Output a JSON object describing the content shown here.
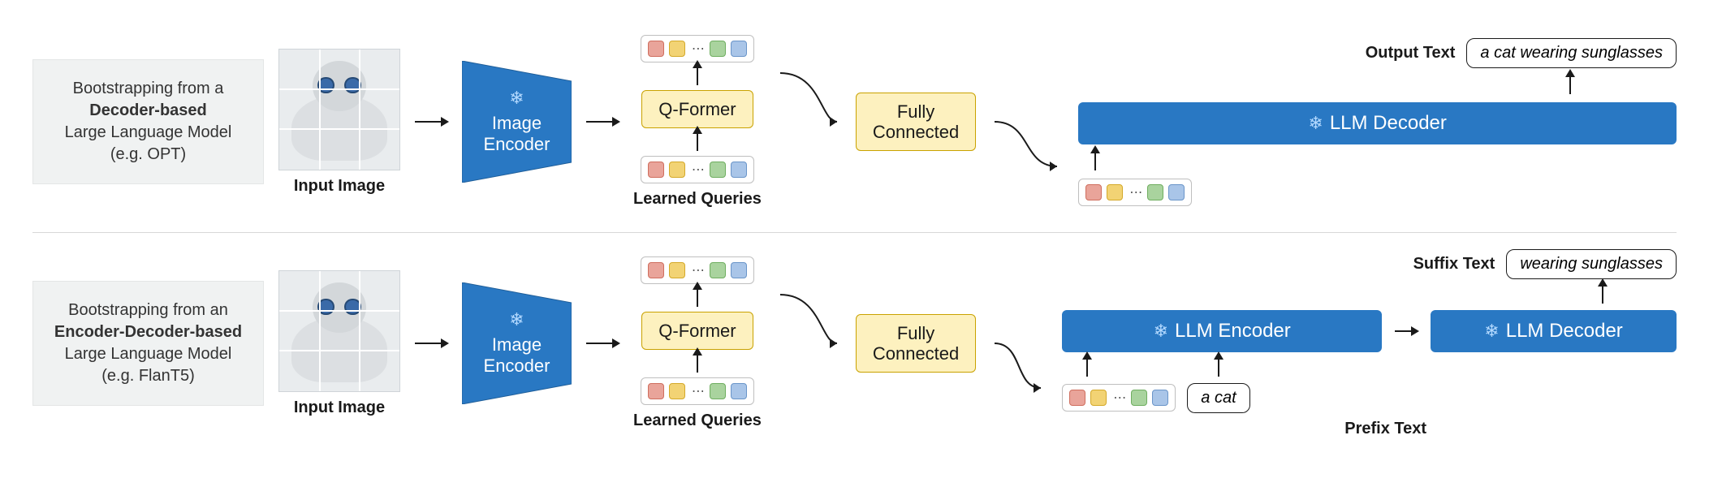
{
  "colors": {
    "blue_fill": "#2978c3",
    "blue_stroke": "#1f5e99",
    "yellow_fill": "#fdf1bf",
    "yellow_stroke": "#c9a200",
    "desc_bg": "#f0f2f2",
    "text": "#1a1a1a",
    "snow": "#b3d9ff",
    "token_colors": [
      "#e9a49a",
      "#f2d374",
      "#a9d39e",
      "#a9c5e8"
    ],
    "token_strokes": [
      "#cf6e5e",
      "#d4a92a",
      "#6fae60",
      "#6a95c9"
    ]
  },
  "common": {
    "input_image_label": "Input Image",
    "image_encoder": "Image\nEncoder",
    "qformer": "Q-Former",
    "fully_connected": "Fully\nConnected",
    "learned_queries": "Learned Queries"
  },
  "top": {
    "desc_html": "Bootstrapping from a<br><b>Decoder-based</b><br>Large Language Model<br>(e.g. OPT)",
    "output_label": "Output Text",
    "output_value": "a cat wearing sunglasses",
    "llm_decoder": "LLM Decoder"
  },
  "bottom": {
    "desc_html": "Bootstrapping from an<br><b>Encoder-Decoder-based</b><br>Large Language Model<br>(e.g. FlanT5)",
    "suffix_label": "Suffix Text",
    "suffix_value": "wearing sunglasses",
    "prefix_label": "Prefix Text",
    "prefix_value": "a cat",
    "llm_encoder": "LLM Encoder",
    "llm_decoder": "LLM Decoder"
  }
}
